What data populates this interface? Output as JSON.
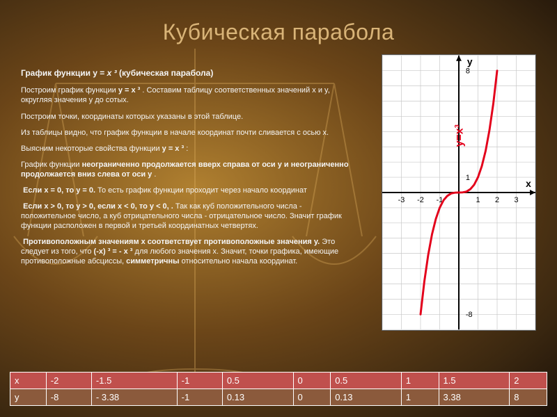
{
  "title": "Кубическая парабола",
  "subtitle_pre": "График функции y = ",
  "subtitle_expr": "x ³",
  "subtitle_post": " (кубическая парабола)",
  "p1_a": "Построим график функции ",
  "p1_b": "y = x ³",
  "p1_c": ". Составим таблицу соответственных значений x и y, округляя значения y до сотых.",
  "p2": "Построим точки, координаты которых указаны в этой таблице.",
  "p3": "Из таблицы видно, что график функции в начале координат почти сливается с осью x.",
  "p4_a": "Выясним некоторые свойства функции ",
  "p4_b": "y = x ³ ",
  "p4_c": ":",
  "p5_a": "График функции ",
  "p5_b": "неограниченно продолжается вверх справа от оси y и неограниченно продолжается вниз слева от оси y",
  "p5_c": ".",
  "p6_a": "Если x = 0, то y = 0.",
  "p6_b": " То есть график функции проходит через начало координат",
  "p7_a": "Если x > 0, то y > 0, если x < 0, то y < 0, .",
  "p7_b": " Так как куб положительного числа - положительное число, а куб отрицательного числа - отрицательное число. Значит график функции расположен в первой и третьей координатных четвертях.",
  "p8_a": "Противоположным значениям x соответствует противоположные значения y.",
  "p8_b": " Это следует из того, что ",
  "p8_c": "(-x) ³ = - x ³",
  "p8_d": " для любого значения x. Значит, точки графика, имеющие противоположные абсциссы, ",
  "p8_e": "симметричны",
  "p8_f": " относительно начала координат.",
  "table": {
    "x_label": "x",
    "y_label": "y",
    "cols": [
      "-2",
      "-1.5",
      "-1",
      "0.5",
      "0",
      "0.5",
      "1",
      "1.5",
      "2"
    ],
    "rows": [
      "-8",
      "-\n3.38",
      "-1",
      "0.13",
      "0",
      "0.13",
      "1",
      "3.38",
      "8"
    ]
  },
  "chart": {
    "type": "line",
    "curve_color": "#e3001b",
    "grid_color": "#c8c8c8",
    "axis_color": "#000000",
    "background": "#ffffff",
    "line_width": 3,
    "x_range": [
      -4,
      4
    ],
    "y_range": [
      -9,
      9
    ],
    "x_ticks": [
      -3,
      -2,
      -1,
      1,
      2,
      3
    ],
    "y_ticks": [
      -8,
      1,
      8
    ],
    "axis_labels": {
      "x": "x",
      "y": "y"
    },
    "curve_label": "y=x³",
    "points": [
      [
        -2,
        -8
      ],
      [
        -1.8,
        -5.83
      ],
      [
        -1.6,
        -4.1
      ],
      [
        -1.4,
        -2.74
      ],
      [
        -1.2,
        -1.73
      ],
      [
        -1,
        -1
      ],
      [
        -0.8,
        -0.51
      ],
      [
        -0.6,
        -0.22
      ],
      [
        -0.4,
        -0.06
      ],
      [
        -0.2,
        -0.008
      ],
      [
        0,
        0
      ],
      [
        0.2,
        0.008
      ],
      [
        0.4,
        0.06
      ],
      [
        0.6,
        0.22
      ],
      [
        0.8,
        0.51
      ],
      [
        1,
        1
      ],
      [
        1.2,
        1.73
      ],
      [
        1.4,
        2.74
      ],
      [
        1.6,
        4.1
      ],
      [
        1.8,
        5.83
      ],
      [
        2,
        8
      ]
    ]
  }
}
